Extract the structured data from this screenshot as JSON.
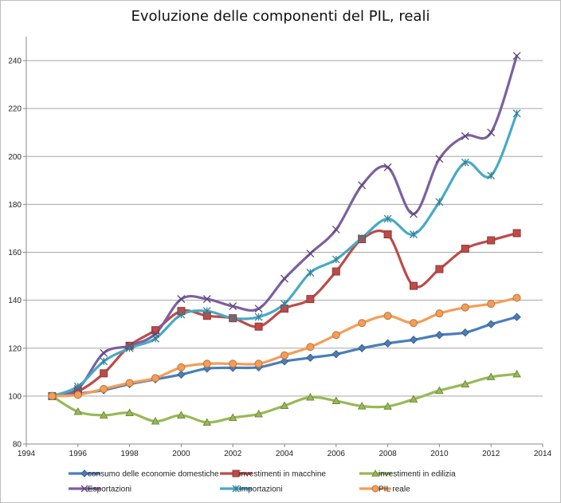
{
  "chart_data": {
    "type": "line",
    "title": "Evoluzione delle componenti del PIL, reali",
    "xlabel": "",
    "ylabel": "",
    "xlim": [
      1994,
      2014
    ],
    "ylim": [
      80,
      250
    ],
    "x_ticks": [
      1994,
      1996,
      1998,
      2000,
      2002,
      2004,
      2006,
      2008,
      2010,
      2012,
      2014
    ],
    "y_ticks": [
      80,
      100,
      120,
      140,
      160,
      180,
      200,
      220,
      240
    ],
    "grid": "horizontal",
    "legend_position": "bottom",
    "x": [
      1995,
      1996,
      1997,
      1998,
      1999,
      2000,
      2001,
      2002,
      2003,
      2004,
      2005,
      2006,
      2007,
      2008,
      2009,
      2010,
      2011,
      2012,
      2013
    ],
    "series": [
      {
        "name": "consumo delle economie domestiche",
        "color": "#4a7ebb",
        "marker": "diamond",
        "values": [
          100,
          101,
          102.5,
          105,
          107,
          109,
          111.5,
          111.8,
          112,
          114.5,
          116,
          117.5,
          120,
          122,
          123.5,
          125.5,
          126.5,
          130,
          133
        ]
      },
      {
        "name": "investimenti in macchine",
        "color": "#be4b48",
        "marker": "square",
        "values": [
          100,
          102,
          109.5,
          121,
          127.5,
          135.5,
          133.5,
          132.5,
          129,
          136.5,
          140.5,
          152,
          165.5,
          167.5,
          146,
          153,
          161.5,
          165,
          168
        ]
      },
      {
        "name": "investimenti in edilizia",
        "color": "#98b954",
        "marker": "triangle",
        "values": [
          100,
          93.5,
          92,
          93,
          89.5,
          92,
          89,
          91,
          92.5,
          96,
          99.5,
          98,
          95.8,
          95.7,
          98.7,
          102.3,
          105,
          108,
          109.2
        ]
      },
      {
        "name": "Esportazioni",
        "color": "#7d5fa0",
        "marker": "x",
        "values": [
          100,
          103,
          118,
          121,
          126,
          140.5,
          140.5,
          137.5,
          136.5,
          149,
          159.5,
          169.5,
          188,
          195.5,
          176,
          199,
          208.5,
          210,
          242
        ]
      },
      {
        "name": "Importazioni",
        "color": "#46aac5",
        "marker": "asterisk",
        "values": [
          100,
          104,
          114.5,
          120,
          124,
          134,
          135.5,
          132.5,
          133,
          138.5,
          151.5,
          157,
          166,
          174,
          167.5,
          181,
          197.5,
          192,
          218
        ]
      },
      {
        "name": "PIL reale",
        "color": "#f59d56",
        "marker": "circle",
        "values": [
          100,
          100.5,
          103,
          105.5,
          107.5,
          112,
          113.5,
          113.5,
          113.5,
          117,
          120.5,
          125.5,
          130.5,
          133.5,
          130.5,
          134.5,
          137,
          138.5,
          141
        ]
      }
    ]
  }
}
